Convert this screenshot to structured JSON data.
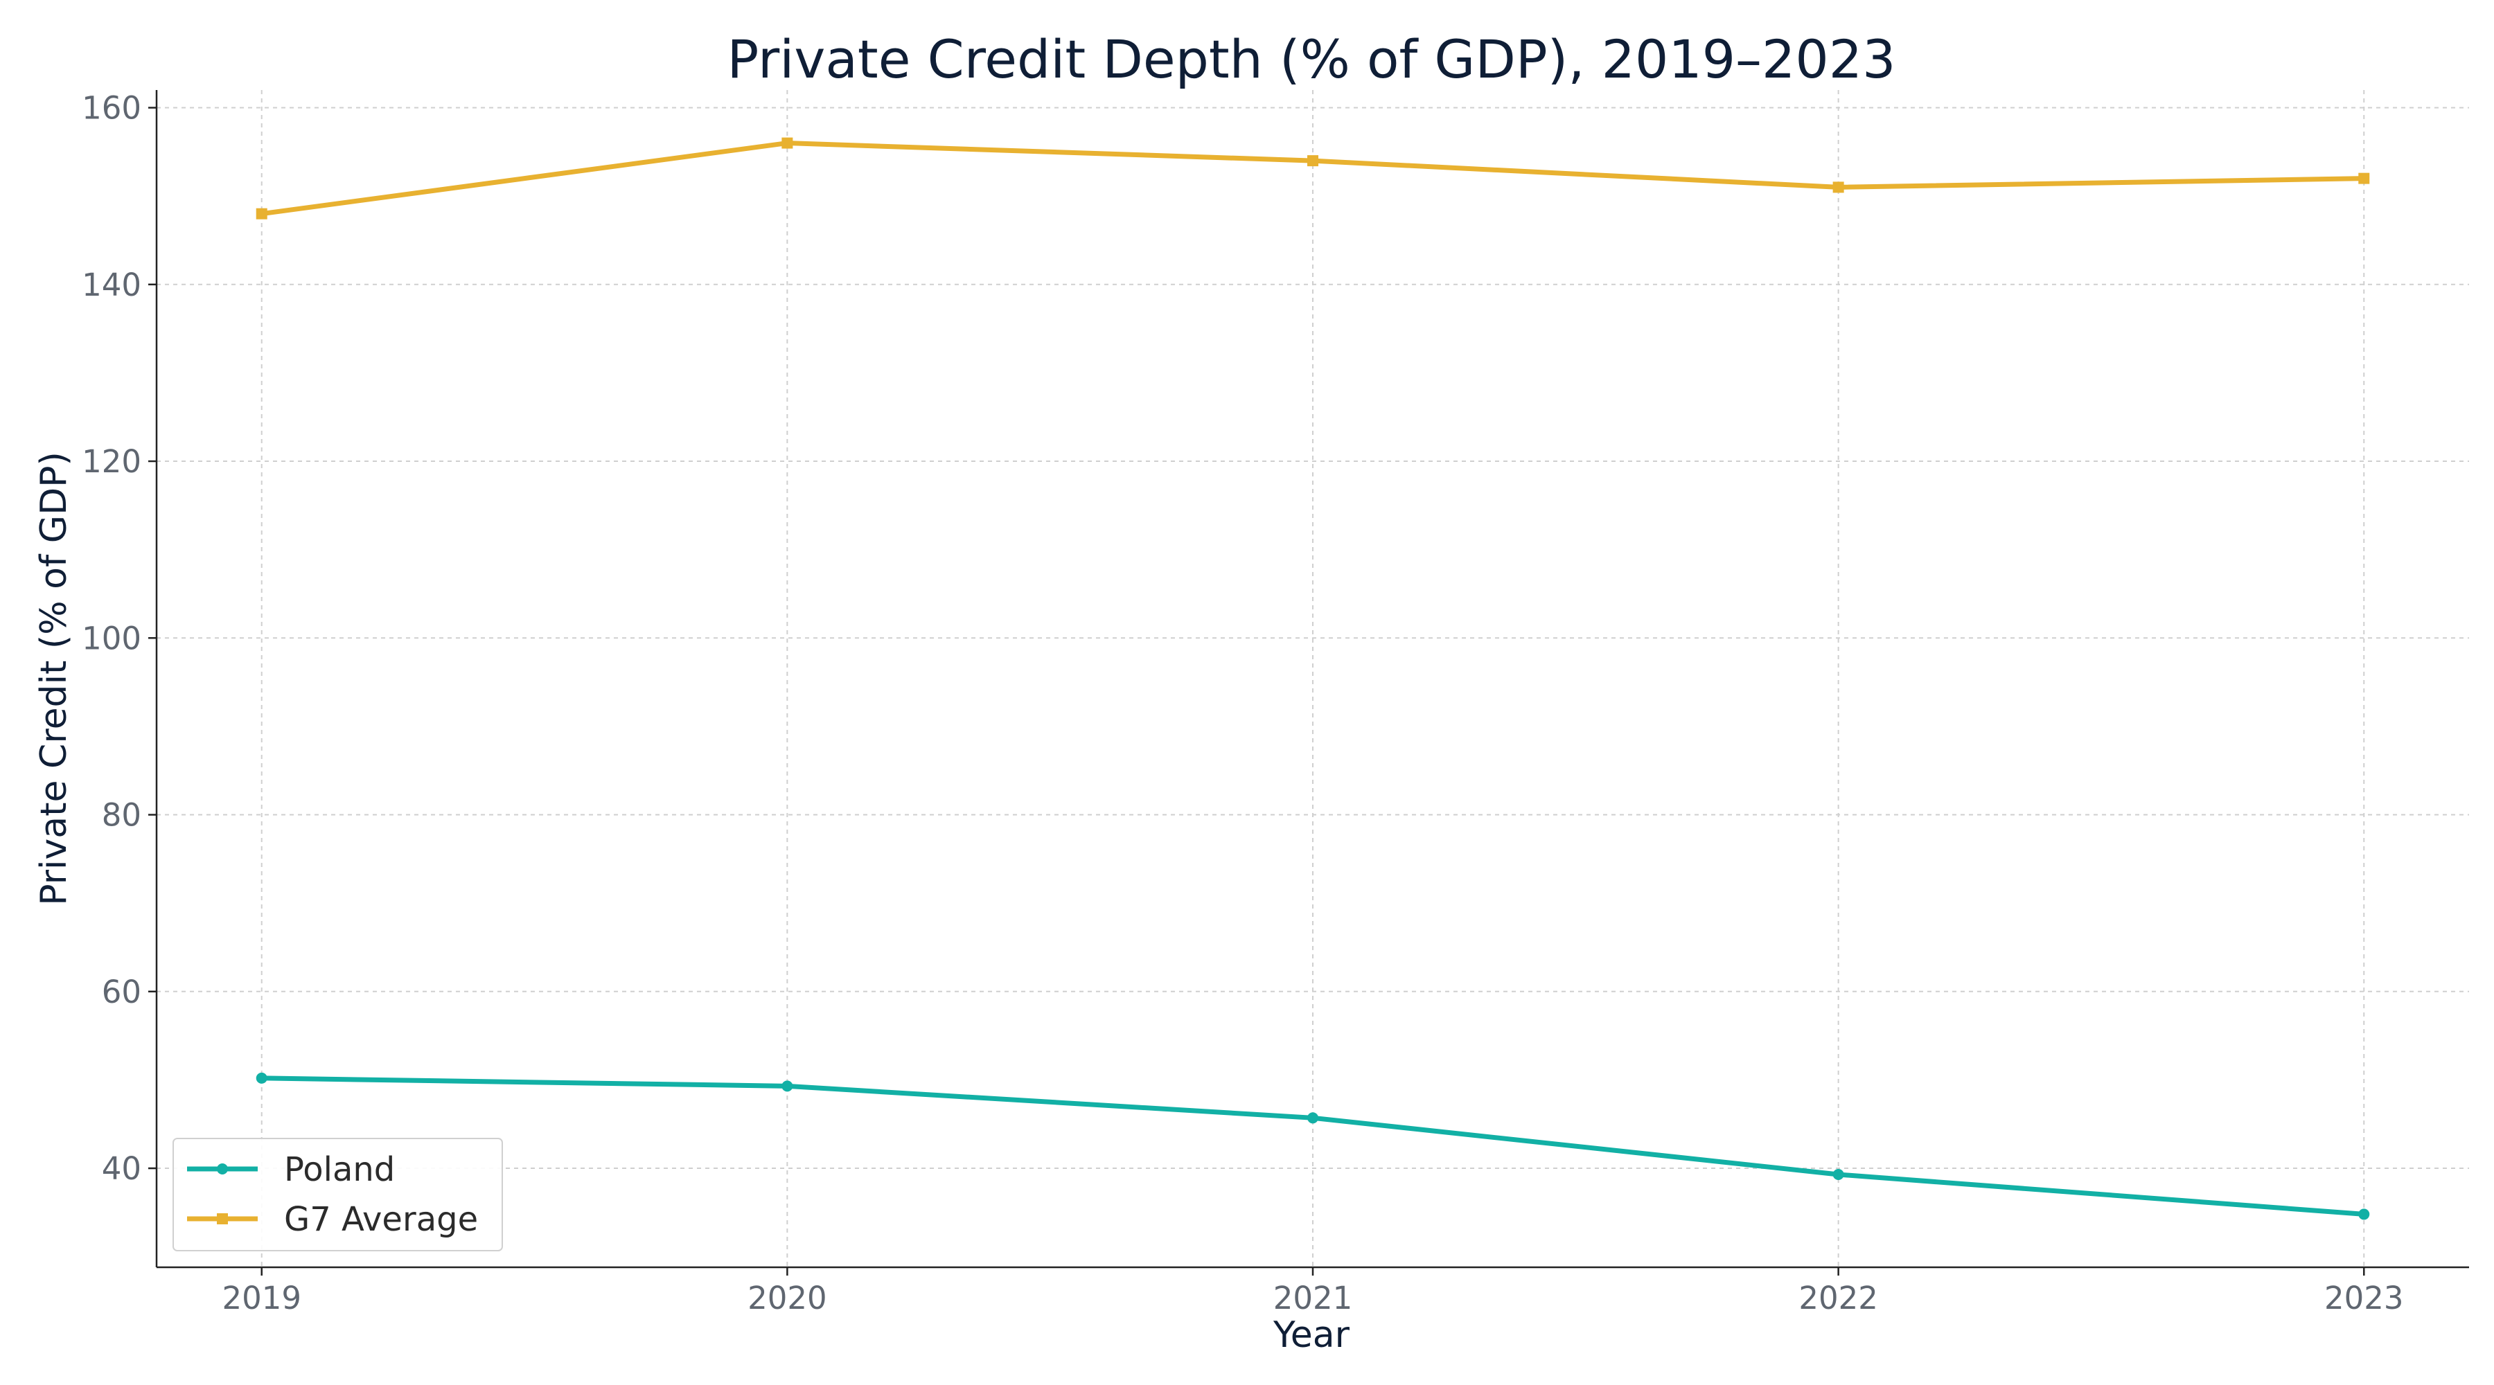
{
  "chart_data": {
    "type": "line",
    "title": "Private Credit Depth (% of GDP), 2019–2023",
    "xlabel": "Year",
    "ylabel": "Private Credit (% of GDP)",
    "x": [
      "2019",
      "2020",
      "2021",
      "2022",
      "2023"
    ],
    "xlim": [
      2018.8,
      2023.2
    ],
    "ylim": [
      28.8,
      162
    ],
    "yticks": [
      40,
      60,
      80,
      100,
      120,
      140,
      160
    ],
    "grid": true,
    "legend_position": "lower-left",
    "series": [
      {
        "name": "Poland",
        "values": [
          50.2,
          49.3,
          45.7,
          39.3,
          34.8
        ],
        "color": "#12b0a5",
        "marker": "circle"
      },
      {
        "name": "G7 Average",
        "values": [
          148,
          156,
          154,
          151,
          152
        ],
        "color": "#e8b130",
        "marker": "square"
      }
    ]
  }
}
